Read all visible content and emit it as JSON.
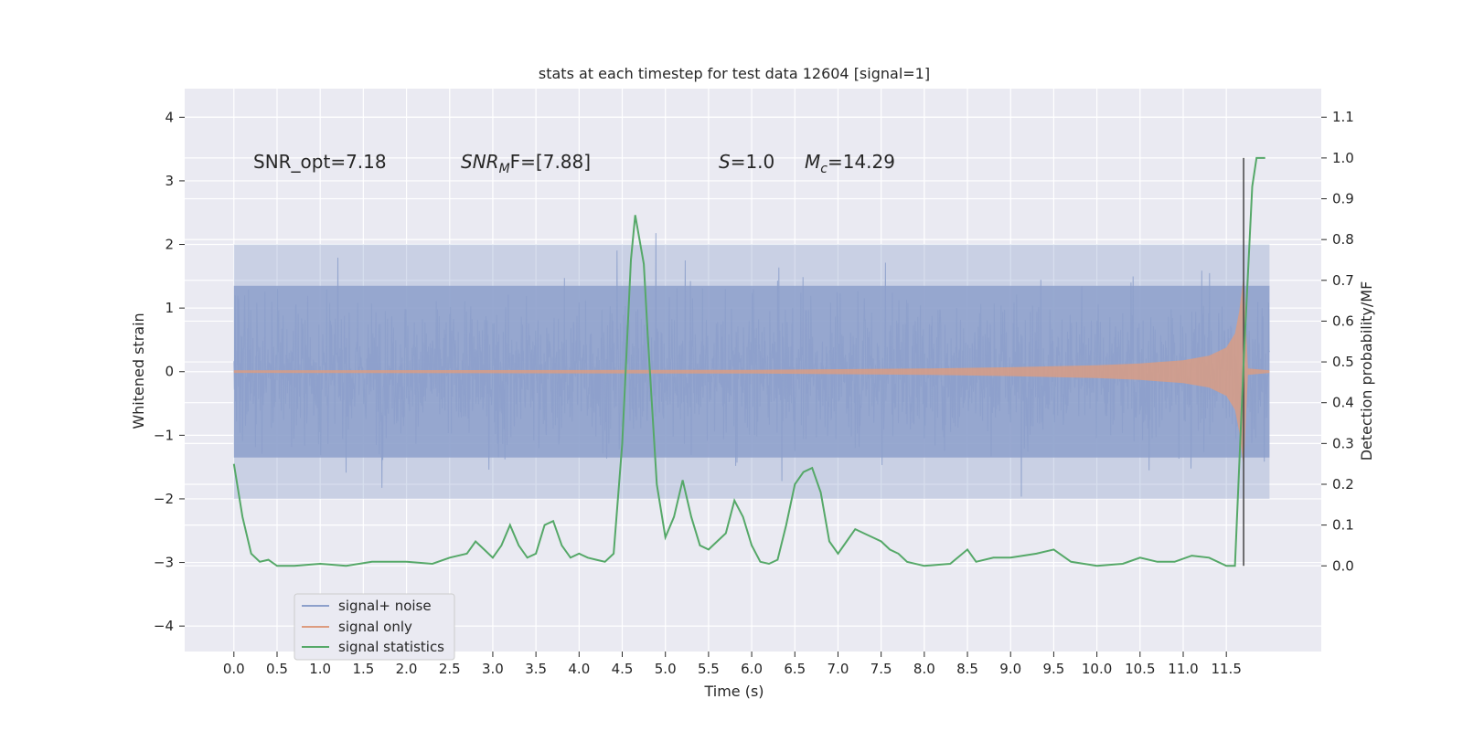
{
  "chart_data": {
    "type": "line",
    "title": "stats at each timestep for test data 12604 [signal=1]",
    "xlabel": "Time (s)",
    "ylabel": "Whitened strain",
    "y2label": "Detection probability/MF",
    "xlim": [
      -0.57,
      12.6
    ],
    "ylim": [
      -4.4,
      4.45
    ],
    "y2lim": [
      -0.21,
      1.17
    ],
    "x_ticks": [
      "0.0",
      "0.5",
      "1.0",
      "1.5",
      "2.0",
      "2.5",
      "3.0",
      "3.5",
      "4.0",
      "4.5",
      "5.0",
      "5.5",
      "6.0",
      "6.5",
      "7.0",
      "7.5",
      "8.0",
      "8.5",
      "9.0",
      "9.5",
      "10.0",
      "10.5",
      "11.0",
      "11.5"
    ],
    "y_ticks": [
      "4",
      "3",
      "2",
      "1",
      "0",
      "−1",
      "−2",
      "−3",
      "−4"
    ],
    "y2_ticks": [
      "1.1",
      "1.0",
      "0.9",
      "0.8",
      "0.7",
      "0.6",
      "0.5",
      "0.4",
      "0.3",
      "0.2",
      "0.1",
      "0.0"
    ],
    "grid": true,
    "legend_position": "lower-left",
    "annotations": {
      "snr_opt": "SNR_opt=7.18",
      "snr_mf_main": "SNR",
      "snr_mf_sub": "M",
      "snr_mf_rest": "F=[7.88]",
      "s_main": "S",
      "s_rest": "=1.0",
      "mc_main": "M",
      "mc_sub": "c",
      "mc_rest": "=14.29"
    },
    "merger_marker_x": 11.7,
    "series": [
      {
        "name": "signal+ noise",
        "color": "#8da0cb",
        "axis": "left",
        "x_range": [
          0.0,
          12.0
        ],
        "core_band": [
          -1.35,
          1.35
        ],
        "typical_peaks": [
          2.0,
          -2.0
        ]
      },
      {
        "name": "signal only",
        "color": "#dd9c80",
        "axis": "left",
        "x_range": [
          0.0,
          12.0
        ],
        "envelope": {
          "x": [
            0.0,
            6.0,
            8.0,
            9.0,
            10.0,
            10.5,
            11.0,
            11.3,
            11.5,
            11.6,
            11.65,
            11.7,
            11.75,
            12.0
          ],
          "amp": [
            0.02,
            0.03,
            0.05,
            0.07,
            0.1,
            0.13,
            0.18,
            0.25,
            0.38,
            0.6,
            0.95,
            1.5,
            0.05,
            0.02
          ]
        }
      },
      {
        "name": "signal statistics",
        "color": "#55a868",
        "axis": "right",
        "x": [
          0.0,
          0.1,
          0.2,
          0.3,
          0.4,
          0.5,
          0.7,
          1.0,
          1.3,
          1.6,
          2.0,
          2.3,
          2.5,
          2.7,
          2.8,
          2.9,
          3.0,
          3.1,
          3.2,
          3.3,
          3.4,
          3.5,
          3.6,
          3.7,
          3.8,
          3.9,
          4.0,
          4.1,
          4.2,
          4.3,
          4.4,
          4.5,
          4.6,
          4.65,
          4.7,
          4.75,
          4.8,
          4.9,
          5.0,
          5.1,
          5.2,
          5.3,
          5.4,
          5.5,
          5.6,
          5.7,
          5.8,
          5.9,
          6.0,
          6.1,
          6.2,
          6.3,
          6.4,
          6.5,
          6.6,
          6.7,
          6.8,
          6.9,
          7.0,
          7.1,
          7.2,
          7.3,
          7.4,
          7.5,
          7.6,
          7.7,
          7.8,
          8.0,
          8.3,
          8.5,
          8.6,
          8.8,
          9.0,
          9.3,
          9.5,
          9.7,
          10.0,
          10.3,
          10.5,
          10.7,
          10.9,
          11.1,
          11.3,
          11.5,
          11.6,
          11.7,
          11.8,
          11.85,
          11.9,
          11.95
        ],
        "values": [
          0.25,
          0.12,
          0.03,
          0.01,
          0.015,
          0.0,
          0.0,
          0.005,
          0.0,
          0.01,
          0.01,
          0.005,
          0.02,
          0.03,
          0.06,
          0.04,
          0.02,
          0.05,
          0.1,
          0.05,
          0.02,
          0.03,
          0.1,
          0.11,
          0.05,
          0.02,
          0.03,
          0.02,
          0.015,
          0.01,
          0.03,
          0.3,
          0.75,
          0.86,
          0.8,
          0.74,
          0.55,
          0.2,
          0.07,
          0.12,
          0.21,
          0.12,
          0.05,
          0.04,
          0.06,
          0.08,
          0.16,
          0.12,
          0.05,
          0.01,
          0.005,
          0.015,
          0.1,
          0.2,
          0.23,
          0.24,
          0.18,
          0.06,
          0.03,
          0.06,
          0.09,
          0.08,
          0.07,
          0.06,
          0.04,
          0.03,
          0.01,
          0.0,
          0.005,
          0.04,
          0.01,
          0.02,
          0.02,
          0.03,
          0.04,
          0.01,
          0.0,
          0.005,
          0.02,
          0.01,
          0.01,
          0.025,
          0.02,
          0.0,
          0.0,
          0.5,
          0.93,
          1.0,
          1.0,
          1.0
        ]
      }
    ]
  }
}
